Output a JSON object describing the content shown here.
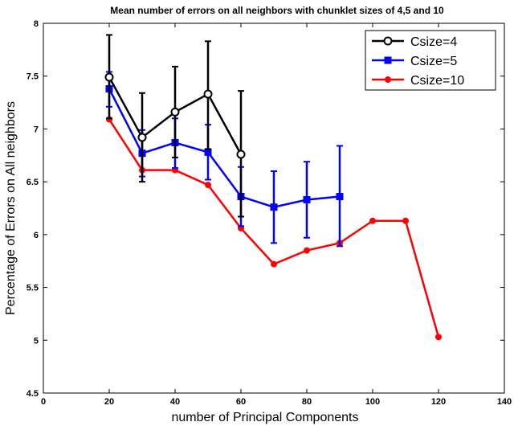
{
  "chart_data": {
    "type": "line",
    "title": "Mean number of errors on all neighbors with chunklet sizes of 4,5 and 10",
    "xlabel": "number of Principal Components",
    "ylabel": "Percentage of Errors on All neighbors",
    "xlim": [
      0,
      140
    ],
    "ylim": [
      4.5,
      8
    ],
    "xticks": [
      "0",
      "20",
      "40",
      "60",
      "80",
      "100",
      "120",
      "140"
    ],
    "yticks": [
      "4.5",
      "5",
      "5.5",
      "6",
      "6.5",
      "7",
      "7.5",
      "8"
    ],
    "grid": false,
    "legend_position": "top-right",
    "series": [
      {
        "name": "Csize=4",
        "color": "#000000",
        "marker": "circle-open",
        "x": [
          20,
          30,
          40,
          50,
          60
        ],
        "y": [
          7.49,
          6.92,
          7.16,
          7.33,
          6.76
        ],
        "err_low": [
          7.1,
          6.5,
          6.73,
          6.81,
          6.17
        ],
        "err_high": [
          7.89,
          7.34,
          7.59,
          7.83,
          7.36
        ]
      },
      {
        "name": "Csize=5",
        "color": "#0000ff",
        "marker": "square",
        "x": [
          20,
          30,
          40,
          50,
          60,
          70,
          80,
          90
        ],
        "y": [
          7.38,
          6.77,
          6.87,
          6.78,
          6.36,
          6.26,
          6.33,
          6.36
        ],
        "err_low": [
          7.21,
          6.55,
          6.63,
          6.52,
          6.08,
          5.92,
          5.97,
          5.89
        ],
        "err_high": [
          7.54,
          6.99,
          7.1,
          7.04,
          6.64,
          6.6,
          6.69,
          6.84
        ]
      },
      {
        "name": "Csize=10",
        "color": "#ff0000",
        "marker": "dot",
        "x": [
          20,
          30,
          40,
          50,
          60,
          70,
          80,
          90,
          100,
          110,
          120
        ],
        "y": [
          7.09,
          6.61,
          6.61,
          6.47,
          6.06,
          5.72,
          5.85,
          5.92,
          6.13,
          6.13,
          5.03
        ]
      }
    ]
  }
}
